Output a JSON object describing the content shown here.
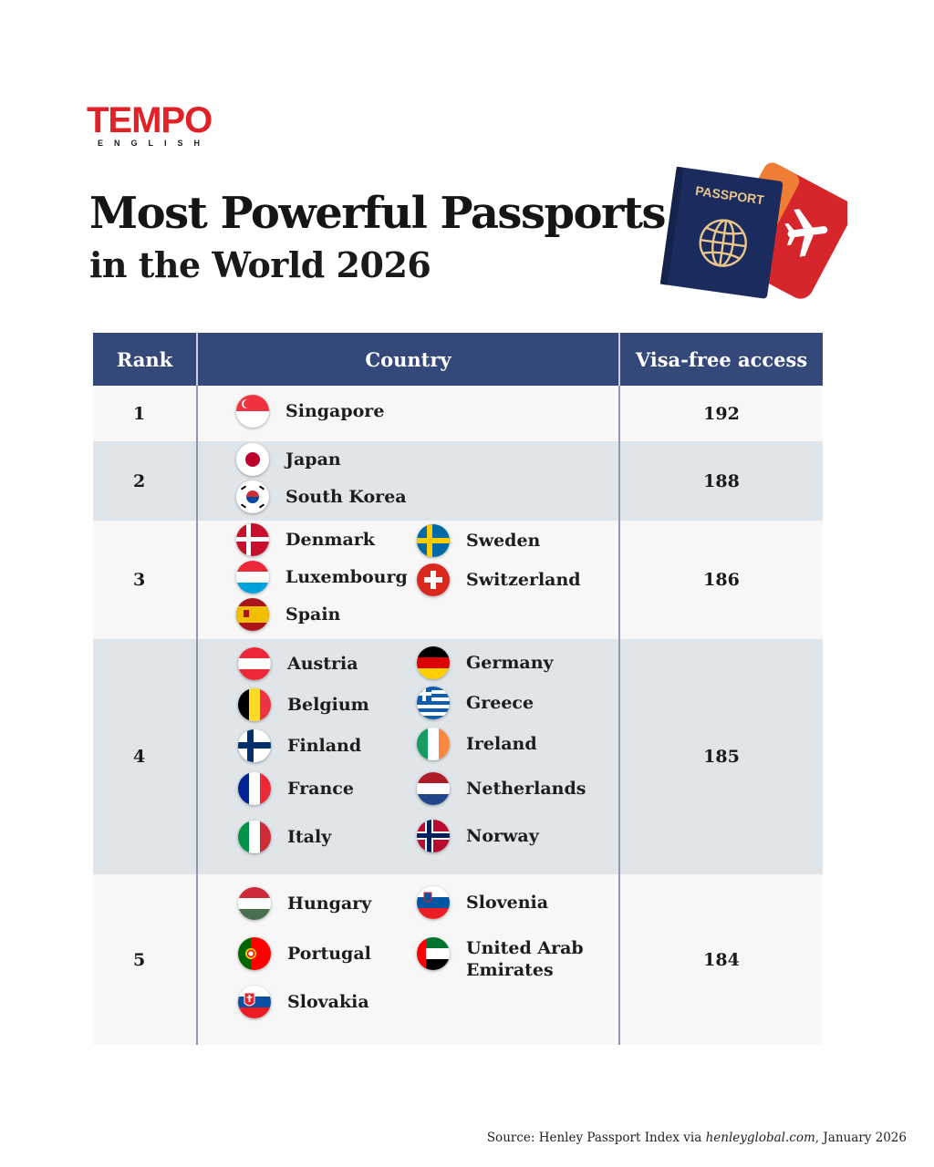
{
  "logo": {
    "main": "TEMPO",
    "sub": "ENGLISH"
  },
  "title": "Most Powerful Passports",
  "subtitle": "in the World 2026",
  "illustration": {
    "passport_label": "PASSPORT"
  },
  "table": {
    "headers": {
      "rank": "Rank",
      "country": "Country",
      "visa": "Visa-free access"
    },
    "rows": [
      {
        "rank": "1",
        "visa": "192",
        "countries": [
          {
            "name": "Singapore",
            "flag": "singapore-flag-icon"
          }
        ]
      },
      {
        "rank": "2",
        "visa": "188",
        "countries": [
          {
            "name": "Japan",
            "flag": "japan-flag-icon"
          },
          {
            "name": "South Korea",
            "flag": "south-korea-flag-icon"
          }
        ]
      },
      {
        "rank": "3",
        "visa": "186",
        "countries": [
          {
            "name": "Denmark",
            "flag": "denmark-flag-icon"
          },
          {
            "name": "Sweden",
            "flag": "sweden-flag-icon"
          },
          {
            "name": "Luxembourg",
            "flag": "luxembourg-flag-icon"
          },
          {
            "name": "Switzerland",
            "flag": "switzerland-flag-icon"
          },
          {
            "name": "Spain",
            "flag": "spain-flag-icon"
          }
        ]
      },
      {
        "rank": "4",
        "visa": "185",
        "countries": [
          {
            "name": "Austria",
            "flag": "austria-flag-icon"
          },
          {
            "name": "Germany",
            "flag": "germany-flag-icon"
          },
          {
            "name": "Belgium",
            "flag": "belgium-flag-icon"
          },
          {
            "name": "Greece",
            "flag": "greece-flag-icon"
          },
          {
            "name": "Finland",
            "flag": "finland-flag-icon"
          },
          {
            "name": "Ireland",
            "flag": "ireland-flag-icon"
          },
          {
            "name": "France",
            "flag": "france-flag-icon"
          },
          {
            "name": "Netherlands",
            "flag": "netherlands-flag-icon"
          },
          {
            "name": "Italy",
            "flag": "italy-flag-icon"
          },
          {
            "name": "Norway",
            "flag": "norway-flag-icon"
          }
        ]
      },
      {
        "rank": "5",
        "visa": "184",
        "countries": [
          {
            "name": "Hungary",
            "flag": "hungary-flag-icon"
          },
          {
            "name": "Slovenia",
            "flag": "slovenia-flag-icon"
          },
          {
            "name": "Portugal",
            "flag": "portugal-flag-icon"
          },
          {
            "name": "United Arab Emirates",
            "flag": "uae-flag-icon"
          },
          {
            "name": "Slovakia",
            "flag": "slovakia-flag-icon"
          }
        ]
      }
    ]
  },
  "source": {
    "prefix": "Source: Henley Passport Index via ",
    "site": "henleyglobal.com",
    "suffix": ", January 2026"
  }
}
